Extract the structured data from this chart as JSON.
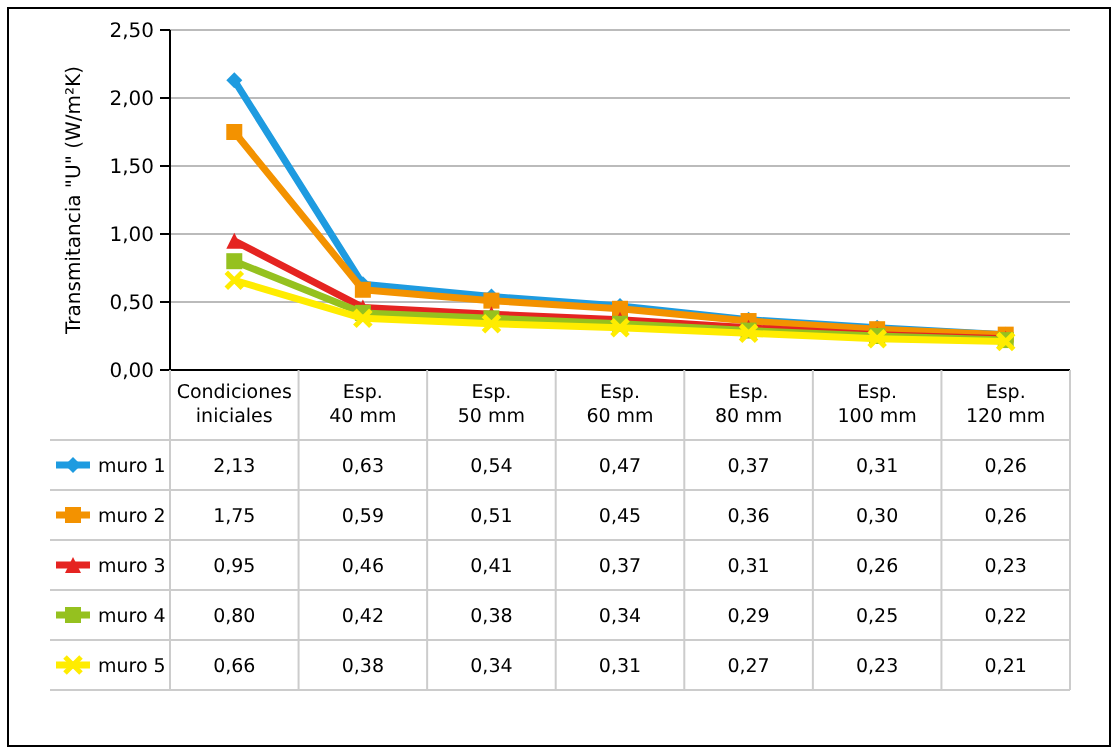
{
  "chart_data": {
    "type": "line",
    "ylabel": "Transmitancia \"U\" (W/m²K)",
    "categories": [
      "Condiciones iniciales",
      "Esp. 40 mm",
      "Esp. 50 mm",
      "Esp. 60 mm",
      "Esp. 80 mm",
      "Esp. 100 mm",
      "Esp. 120 mm"
    ],
    "series": [
      {
        "name": "muro 1",
        "color": "#1e9be0",
        "marker": "diamond",
        "values": [
          2.13,
          0.63,
          0.54,
          0.47,
          0.37,
          0.31,
          0.26
        ],
        "value_labels": [
          "2,13",
          "0,63",
          "0,54",
          "0,47",
          "0,37",
          "0,31",
          "0,26"
        ]
      },
      {
        "name": "muro 2",
        "color": "#f39200",
        "marker": "square",
        "values": [
          1.75,
          0.59,
          0.51,
          0.45,
          0.36,
          0.3,
          0.26
        ],
        "value_labels": [
          "1,75",
          "0,59",
          "0,51",
          "0,45",
          "0,36",
          "0,30",
          "0,26"
        ]
      },
      {
        "name": "muro 3",
        "color": "#e52421",
        "marker": "triangle",
        "values": [
          0.95,
          0.46,
          0.41,
          0.37,
          0.31,
          0.26,
          0.23
        ],
        "value_labels": [
          "0,95",
          "0,46",
          "0,41",
          "0,37",
          "0,31",
          "0,26",
          "0,23"
        ]
      },
      {
        "name": "muro 4",
        "color": "#95c11f",
        "marker": "square",
        "values": [
          0.8,
          0.42,
          0.38,
          0.34,
          0.29,
          0.25,
          0.22
        ],
        "value_labels": [
          "0,80",
          "0,42",
          "0,38",
          "0,34",
          "0,29",
          "0,25",
          "0,22"
        ]
      },
      {
        "name": "muro 5",
        "color": "#ffec00",
        "marker": "cross",
        "values": [
          0.66,
          0.38,
          0.34,
          0.31,
          0.27,
          0.23,
          0.21
        ],
        "value_labels": [
          "0,66",
          "0,38",
          "0,34",
          "0,31",
          "0,27",
          "0,23",
          "0,21"
        ]
      }
    ],
    "ylim": [
      0,
      2.5
    ],
    "yticks": [
      {
        "value": 0,
        "label": "0,00"
      },
      {
        "value": 0.5,
        "label": "0,50"
      },
      {
        "value": 1,
        "label": "1,00"
      },
      {
        "value": 1.5,
        "label": "1,50"
      },
      {
        "value": 2,
        "label": "2,00"
      },
      {
        "value": 2.5,
        "label": "2,50"
      }
    ],
    "grid": "y",
    "legend": "bottom",
    "line_style": "solid"
  }
}
